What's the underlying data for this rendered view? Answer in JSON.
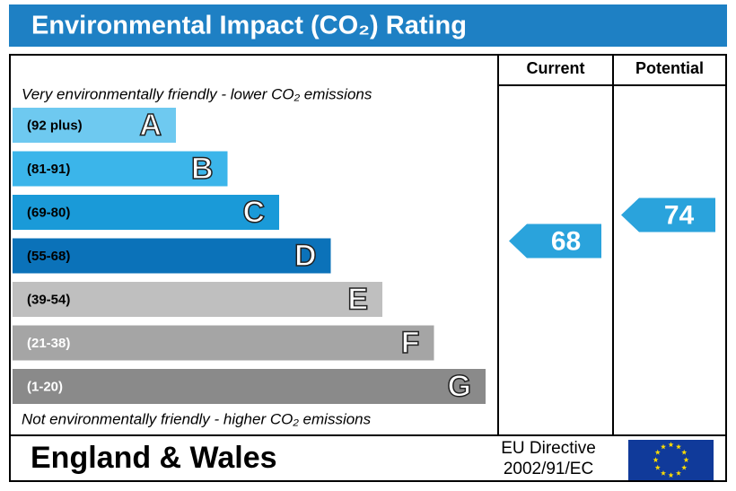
{
  "header": {
    "title": "Environmental Impact (CO₂) Rating"
  },
  "columns": [
    "Current",
    "Potential"
  ],
  "top_note": "Very environmentally friendly - lower CO₂ emissions",
  "bottom_note": "Not environmentally friendly - higher CO₂ emissions",
  "bands": [
    {
      "range": "(92 plus)",
      "letter": "A",
      "color": "#6ec9f0",
      "text_color": "#000"
    },
    {
      "range": "(81-91)",
      "letter": "B",
      "color": "#3bb5ea",
      "text_color": "#000"
    },
    {
      "range": "(69-80)",
      "letter": "C",
      "color": "#1a9ad8",
      "text_color": "#000"
    },
    {
      "range": "(55-68)",
      "letter": "D",
      "color": "#0b72b9",
      "text_color": "#000"
    },
    {
      "range": "(39-54)",
      "letter": "E",
      "color": "#bfbfbf",
      "text_color": "#000"
    },
    {
      "range": "(21-38)",
      "letter": "F",
      "color": "#a5a5a5",
      "text_color": "#fff"
    },
    {
      "range": "(1-20)",
      "letter": "G",
      "color": "#8a8a8a",
      "text_color": "#fff"
    }
  ],
  "current": {
    "value": 68,
    "color": "#2aa3dc"
  },
  "potential": {
    "value": 74,
    "color": "#2aa3dc"
  },
  "footer": {
    "region": "England & Wales",
    "directive": [
      "EU Directive",
      "2002/91/EC"
    ]
  }
}
